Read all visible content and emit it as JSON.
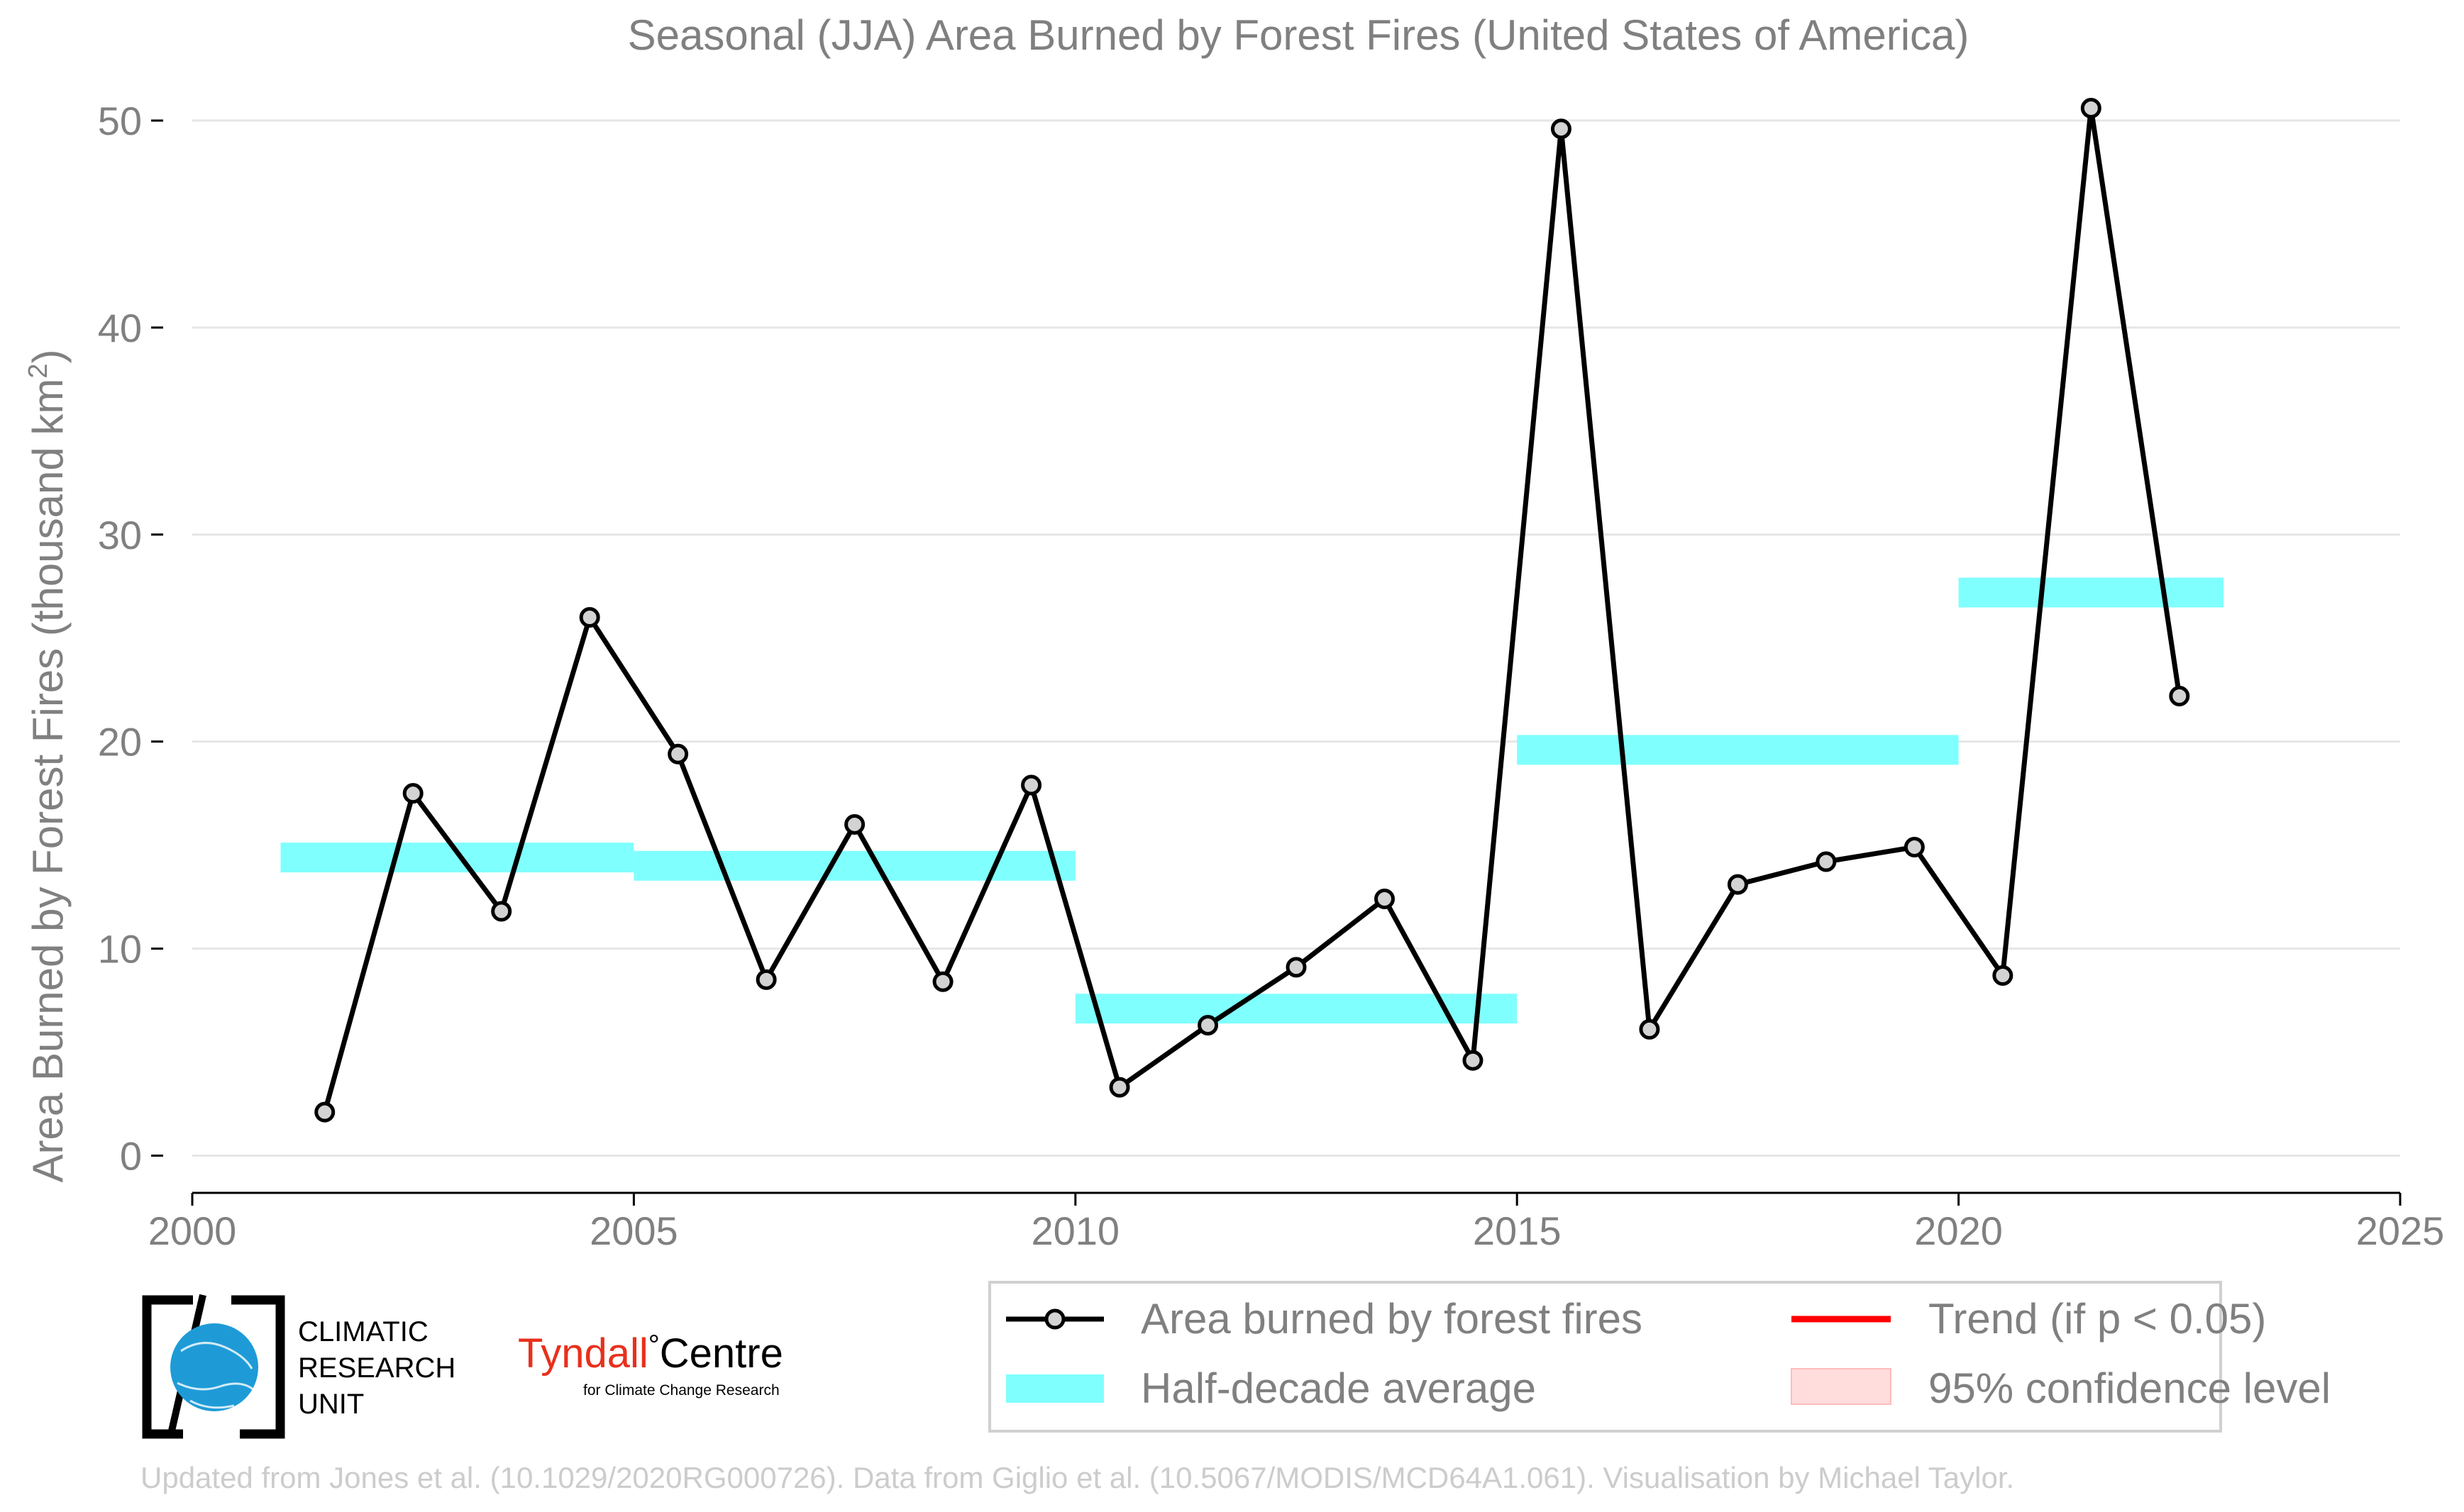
{
  "chart_data": {
    "type": "line",
    "title": "Seasonal (JJA) Area Burned by Forest Fires (United States of America)",
    "xlabel": "",
    "ylabel": "Area Burned by Forest Fires (thousand km",
    "ylabel_sup": "2",
    "ylabel_tail": ")",
    "xlim": [
      2000,
      2025
    ],
    "ylim": [
      -1.8,
      51.2
    ],
    "grid": "horizontal",
    "legend_placement": "bottom-right",
    "x_ticks": [
      {
        "value": 2000,
        "label": "2000"
      },
      {
        "value": 2005,
        "label": "2005"
      },
      {
        "value": 2010,
        "label": "2010"
      },
      {
        "value": 2015,
        "label": "2015"
      },
      {
        "value": 2020,
        "label": "2020"
      },
      {
        "value": 2025,
        "label": "2025"
      }
    ],
    "y_ticks": [
      {
        "value": 0,
        "label": "0"
      },
      {
        "value": 10,
        "label": "10"
      },
      {
        "value": 20,
        "label": "20"
      },
      {
        "value": 30,
        "label": "30"
      },
      {
        "value": 40,
        "label": "40"
      },
      {
        "value": 50,
        "label": "50"
      }
    ],
    "series": [
      {
        "name": "Area burned by forest fires",
        "color": "#000000",
        "marker_fill": "#d3d3d3",
        "points": [
          {
            "x": 2001.5,
            "y": 2.1
          },
          {
            "x": 2002.5,
            "y": 17.5
          },
          {
            "x": 2003.5,
            "y": 11.8
          },
          {
            "x": 2004.5,
            "y": 26.0
          },
          {
            "x": 2005.5,
            "y": 19.4
          },
          {
            "x": 2006.5,
            "y": 8.5
          },
          {
            "x": 2007.5,
            "y": 16.0
          },
          {
            "x": 2008.5,
            "y": 8.4
          },
          {
            "x": 2009.5,
            "y": 17.9
          },
          {
            "x": 2010.5,
            "y": 3.3
          },
          {
            "x": 2011.5,
            "y": 6.3
          },
          {
            "x": 2012.5,
            "y": 9.1
          },
          {
            "x": 2013.5,
            "y": 12.4
          },
          {
            "x": 2014.5,
            "y": 4.6
          },
          {
            "x": 2015.5,
            "y": 49.6
          },
          {
            "x": 2016.5,
            "y": 6.1
          },
          {
            "x": 2017.5,
            "y": 13.1
          },
          {
            "x": 2018.5,
            "y": 14.2
          },
          {
            "x": 2019.5,
            "y": 14.9
          },
          {
            "x": 2020.5,
            "y": 8.7
          },
          {
            "x": 2021.5,
            "y": 50.6
          },
          {
            "x": 2022.5,
            "y": 22.2
          }
        ]
      }
    ],
    "half_decade_averages": {
      "name": "Half-decade average",
      "color": "#80ffff",
      "segments": [
        {
          "x_start": 2001,
          "x_end": 2005,
          "y": 14.4
        },
        {
          "x_start": 2005,
          "x_end": 2010,
          "y": 14.0
        },
        {
          "x_start": 2010,
          "x_end": 2015,
          "y": 7.1
        },
        {
          "x_start": 2015,
          "x_end": 2020,
          "y": 19.6
        },
        {
          "x_start": 2020,
          "x_end": 2023,
          "y": 27.2
        }
      ]
    },
    "legend": [
      {
        "label": "Area burned by forest fires",
        "kind": "line-marker",
        "color": "#000000"
      },
      {
        "label": "Trend (if p < 0.05)",
        "kind": "line",
        "color": "#ff0000"
      },
      {
        "label": "Half-decade average",
        "kind": "band",
        "color": "#80ffff"
      },
      {
        "label": "95% confidence level",
        "kind": "band",
        "color": "#ffdddd"
      }
    ],
    "footnote": "Updated from Jones et al. (10.1029/2020RG000726). Data from Giglio et al. (10.5067/MODIS/MCD64A1.061). Visualisation by Michael Taylor."
  },
  "logos": {
    "cru_lines": [
      "CLIMATIC",
      "RESEARCH",
      "UNIT"
    ],
    "tyndall_name": "Tyndall",
    "tyndall_degree": "°",
    "tyndall_centre": "Centre",
    "tyndall_tagline": "for Climate Change Research",
    "tyndall_color": "#e8301c",
    "cru_globe_color": "#1e9bd7"
  }
}
